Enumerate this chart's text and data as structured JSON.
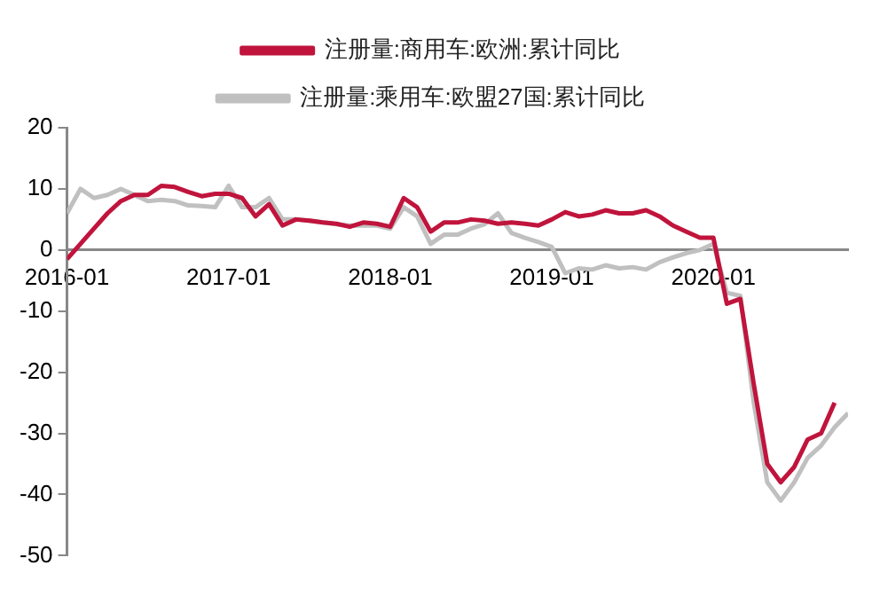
{
  "chart_data": {
    "type": "line",
    "legend": "top",
    "grid": false,
    "marker": "none",
    "line_style": "solid",
    "xlim": [
      "2016-01",
      "2020-11"
    ],
    "xticks": [
      "2016-01",
      "2017-01",
      "2018-01",
      "2019-01",
      "2020-01"
    ],
    "ylim": [
      -50,
      20
    ],
    "yticks": [
      -50,
      -40,
      -30,
      -20,
      -10,
      0,
      10,
      20
    ],
    "series": [
      {
        "name": "注册量:商用车:欧洲:累计同比",
        "color": "#c0143c",
        "x": [
          "2016-01",
          "2016-02",
          "2016-03",
          "2016-04",
          "2016-05",
          "2016-06",
          "2016-07",
          "2016-08",
          "2016-09",
          "2016-10",
          "2016-11",
          "2016-12",
          "2017-01",
          "2017-02",
          "2017-03",
          "2017-04",
          "2017-05",
          "2017-06",
          "2017-07",
          "2017-08",
          "2017-09",
          "2017-10",
          "2017-11",
          "2017-12",
          "2018-01",
          "2018-02",
          "2018-03",
          "2018-04",
          "2018-05",
          "2018-06",
          "2018-07",
          "2018-08",
          "2018-09",
          "2018-10",
          "2018-11",
          "2018-12",
          "2019-01",
          "2019-02",
          "2019-03",
          "2019-04",
          "2019-05",
          "2019-06",
          "2019-07",
          "2019-08",
          "2019-09",
          "2019-10",
          "2019-11",
          "2019-12",
          "2020-01",
          "2020-02",
          "2020-03",
          "2020-04",
          "2020-05",
          "2020-06",
          "2020-07",
          "2020-08",
          "2020-09",
          "2020-10"
        ],
        "values": [
          -1.5,
          1,
          3.5,
          6,
          8,
          9,
          9,
          10.5,
          10.3,
          9.5,
          8.8,
          9.2,
          9.2,
          8.5,
          5.5,
          7.5,
          4,
          5,
          4.8,
          4.5,
          4.3,
          3.8,
          4.5,
          4.3,
          3.8,
          8.5,
          7,
          3,
          4.5,
          4.5,
          5,
          4.8,
          4.3,
          4.5,
          4.3,
          4,
          5,
          6.2,
          5.5,
          5.8,
          6.5,
          6,
          6,
          6.5,
          5.5,
          4,
          3,
          2,
          2,
          -8.8,
          -8,
          -22,
          -35,
          -38,
          -35.5,
          -31,
          -30,
          -25
        ]
      },
      {
        "name": "注册量:乘用车:欧盟27国:累计同比",
        "color": "#c0c0c0",
        "x": [
          "2016-01",
          "2016-02",
          "2016-03",
          "2016-04",
          "2016-05",
          "2016-06",
          "2016-07",
          "2016-08",
          "2016-09",
          "2016-10",
          "2016-11",
          "2016-12",
          "2017-01",
          "2017-02",
          "2017-03",
          "2017-04",
          "2017-05",
          "2017-06",
          "2017-07",
          "2017-08",
          "2017-09",
          "2017-10",
          "2017-11",
          "2017-12",
          "2018-01",
          "2018-02",
          "2018-03",
          "2018-04",
          "2018-05",
          "2018-06",
          "2018-07",
          "2018-08",
          "2018-09",
          "2018-10",
          "2018-11",
          "2018-12",
          "2019-01",
          "2019-02",
          "2019-03",
          "2019-04",
          "2019-05",
          "2019-06",
          "2019-07",
          "2019-08",
          "2019-09",
          "2019-10",
          "2019-11",
          "2019-12",
          "2020-01",
          "2020-02",
          "2020-03",
          "2020-04",
          "2020-05",
          "2020-06",
          "2020-07",
          "2020-08",
          "2020-09",
          "2020-10",
          "2020-11"
        ],
        "values": [
          6,
          10,
          8.5,
          9,
          10,
          9,
          8,
          8.2,
          8,
          7.3,
          7.2,
          7,
          10.5,
          7,
          7,
          8.5,
          5,
          5,
          4.8,
          4.5,
          4.2,
          4,
          4,
          4,
          3.5,
          7,
          5.5,
          1,
          2.5,
          2.5,
          3.5,
          4.2,
          6,
          2.8,
          2,
          1.3,
          0.5,
          -3.8,
          -3,
          -3.2,
          -2.5,
          -3,
          -2.8,
          -3.2,
          -2,
          -1.2,
          -0.5,
          0,
          1,
          -7,
          -7.5,
          -25,
          -38,
          -41,
          -38,
          -34,
          -32,
          -29,
          -26.7
        ]
      }
    ]
  }
}
